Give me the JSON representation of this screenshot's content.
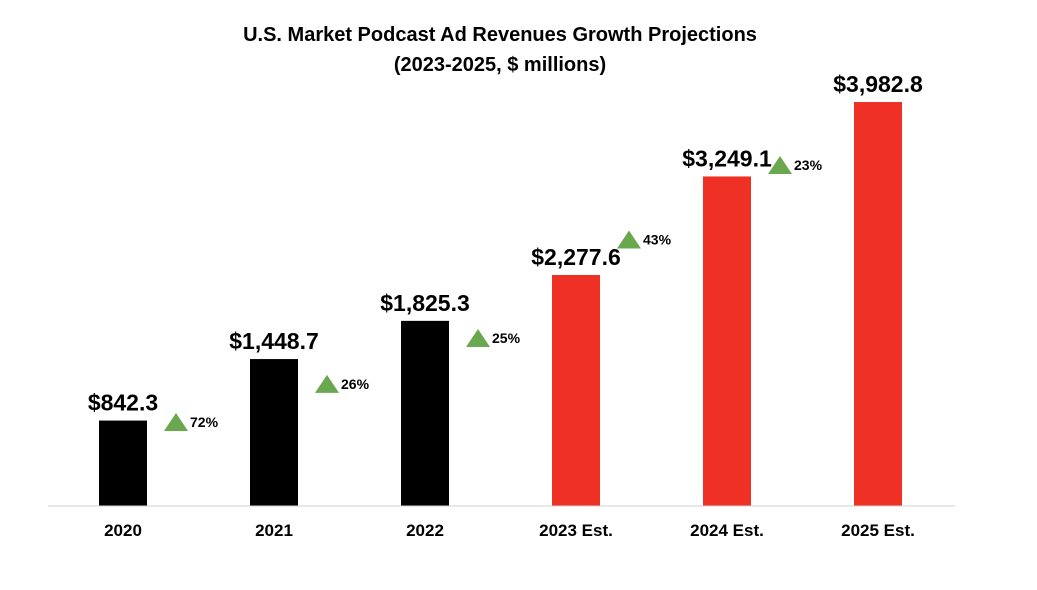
{
  "chart_data": {
    "type": "bar",
    "title": "U.S. Market Podcast Ad Revenues Growth Projections",
    "subtitle": "(2023-2025, $ millions)",
    "categories": [
      "2020",
      "2021",
      "2022",
      "2023 Est.",
      "2024 Est.",
      "2025 Est."
    ],
    "values": [
      842.3,
      1448.7,
      1825.3,
      2277.6,
      3249.1,
      3982.8
    ],
    "value_labels": [
      "$842.3",
      "$1,448.7",
      "$1,825.3",
      "$2,277.6",
      "$3,249.1",
      "$3,982.8"
    ],
    "growth_labels": [
      "72%",
      "26%",
      "25%",
      "43%",
      "23%"
    ],
    "ylim": [
      0,
      4200
    ],
    "grid": false,
    "legend": "none",
    "colors": {
      "actual": "#000000",
      "estimate": "#ee3124",
      "growth_marker": "#6aa84f",
      "axis": "#d0d0d0"
    },
    "estimate_flags": [
      false,
      false,
      false,
      true,
      true,
      true
    ]
  }
}
